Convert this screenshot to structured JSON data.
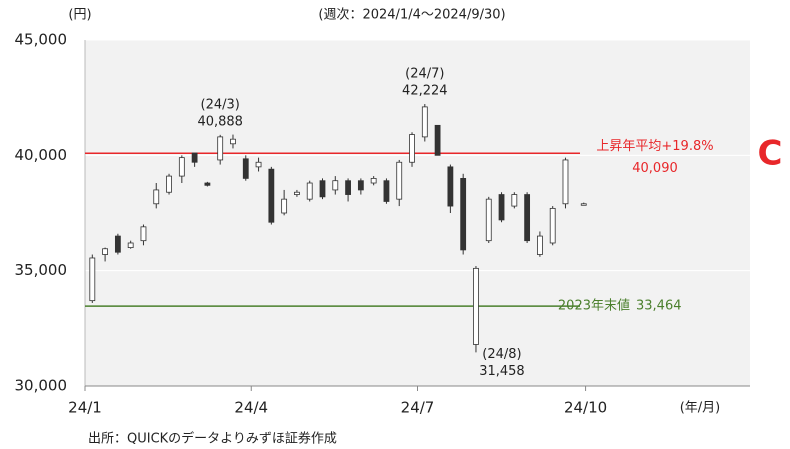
{
  "chart_data": {
    "type": "candlestick",
    "title": "(週次：2024/1/4～2024/9/30)",
    "y_unit_label": "(円)",
    "x_unit_label": "(年/月)",
    "source": "出所：QUICKのデータよりみずほ証券作成",
    "corner_mark": "C",
    "ylim": [
      30000,
      45000
    ],
    "yticks": [
      {
        "value": 30000,
        "label": "30,000"
      },
      {
        "value": 35000,
        "label": "35,000"
      },
      {
        "value": 40000,
        "label": "40,000"
      },
      {
        "value": 45000,
        "label": "45,000"
      }
    ],
    "xlim": [
      0,
      364
    ],
    "xticks": [
      {
        "value": 0,
        "label": "24/1"
      },
      {
        "value": 91,
        "label": "24/4"
      },
      {
        "value": 182,
        "label": "24/7"
      },
      {
        "value": 274,
        "label": "24/10"
      }
    ],
    "grid": true,
    "x": [
      4,
      11,
      18,
      25,
      32,
      39,
      46,
      53,
      60,
      67,
      74,
      81,
      88,
      95,
      102,
      109,
      116,
      123,
      130,
      137,
      144,
      151,
      158,
      165,
      172,
      179,
      186,
      193,
      200,
      207,
      214,
      221,
      228,
      235,
      242,
      249,
      256,
      263,
      273
    ],
    "open": [
      33700,
      35700,
      36500,
      36000,
      36300,
      37900,
      38400,
      39100,
      40100,
      38800,
      39800,
      40500,
      39850,
      39500,
      39400,
      37500,
      38300,
      38100,
      38900,
      38500,
      38900,
      38900,
      38800,
      38900,
      38100,
      39700,
      40800,
      41300,
      39500,
      39000,
      31800,
      36300,
      38300,
      37800,
      38300,
      35700,
      36200,
      37900,
      37900
    ],
    "high": [
      35700,
      36000,
      36600,
      36300,
      37000,
      38800,
      39200,
      40000,
      40100,
      38850,
      40888,
      40900,
      40000,
      39900,
      39500,
      38500,
      38500,
      38900,
      39000,
      39100,
      39000,
      39000,
      39100,
      39000,
      39800,
      41000,
      42224,
      41300,
      39600,
      39200,
      35200,
      38200,
      38400,
      38400,
      38400,
      36700,
      37800,
      39900,
      37950
    ],
    "low": [
      33600,
      35400,
      35700,
      35950,
      36100,
      37700,
      38300,
      38800,
      39500,
      38650,
      39600,
      40300,
      38900,
      39300,
      37000,
      37400,
      38200,
      38000,
      38100,
      38300,
      38000,
      38300,
      38700,
      37900,
      37800,
      39500,
      40600,
      40000,
      37500,
      35700,
      31458,
      36200,
      37100,
      37700,
      36200,
      35600,
      36100,
      37700,
      37850
    ],
    "close": [
      35550,
      35950,
      35800,
      36200,
      36900,
      38500,
      39100,
      39900,
      39700,
      38700,
      40800,
      40700,
      39000,
      39700,
      37100,
      38100,
      38400,
      38800,
      38200,
      38900,
      38300,
      38500,
      39000,
      38000,
      39700,
      40900,
      42100,
      40000,
      37800,
      35900,
      35100,
      38100,
      37200,
      38300,
      36300,
      36500,
      37700,
      39800,
      37900
    ],
    "up_color": "#ffffff",
    "down_color": "#333333",
    "hlines": [
      {
        "text": "上昇年平均+19.8%",
        "value": 40090,
        "label": "40,090",
        "color": "#e8272a"
      },
      {
        "text": "2023年末値",
        "value": 33464,
        "label": "33,464",
        "color": "#4a7f2c"
      }
    ],
    "annotations": [
      {
        "text": "(24/3)",
        "x": 74,
        "value": 40888,
        "label": "40,888",
        "position": "above"
      },
      {
        "text": "(24/7)",
        "x": 186,
        "value": 42224,
        "label": "42,224",
        "position": "above"
      },
      {
        "text": "(24/8)",
        "x": 214,
        "value": 31458,
        "label": "31,458",
        "position": "below"
      }
    ]
  }
}
